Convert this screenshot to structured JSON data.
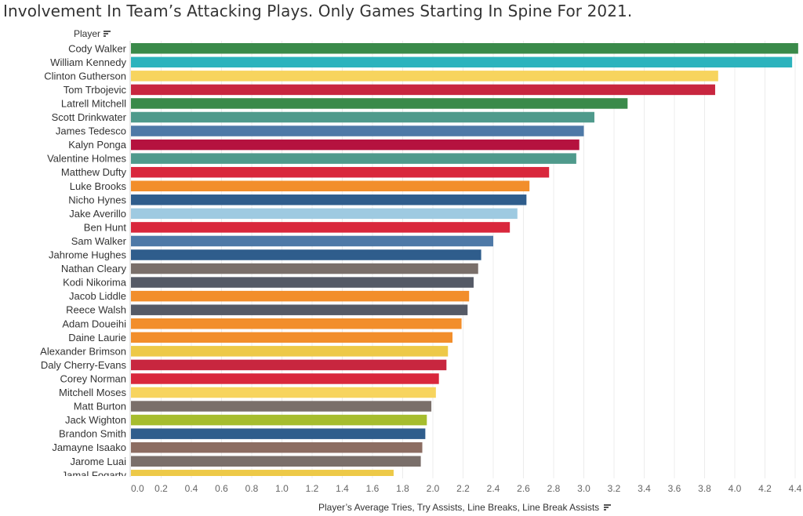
{
  "title": "Involvement In Team’s Attacking Plays. Only Games Starting In Spine For 2021.",
  "header": {
    "player_label": "Player",
    "sort_icon": "sort-icon"
  },
  "chart_data": {
    "type": "bar",
    "orientation": "horizontal",
    "title": "Involvement In Team’s Attacking Plays. Only Games Starting In Spine For 2021.",
    "ylabel": "Player",
    "xlabel": "Player’s Average Tries, Try Assists, Line Breaks, Line Break Assists",
    "xlim": [
      0,
      4.4
    ],
    "xticks": [
      "0.0",
      "0.2",
      "0.4",
      "0.6",
      "0.8",
      "1.0",
      "1.2",
      "1.4",
      "1.6",
      "1.8",
      "2.0",
      "2.2",
      "2.4",
      "2.6",
      "2.8",
      "3.0",
      "3.2",
      "3.4",
      "3.6",
      "3.8",
      "4.0",
      "4.2",
      "4.4"
    ],
    "grid": "vertical",
    "categories": [
      "Cody Walker",
      "William Kennedy",
      "Clinton Gutherson",
      "Tom Trbojevic",
      "Latrell Mitchell",
      "Scott Drinkwater",
      "James Tedesco",
      "Kalyn Ponga",
      "Valentine Holmes",
      "Matthew Dufty",
      "Luke Brooks",
      "Nicho Hynes",
      "Jake Averillo",
      "Ben Hunt",
      "Sam Walker",
      "Jahrome Hughes",
      "Nathan Cleary",
      "Kodi Nikorima",
      "Jacob Liddle",
      "Reece Walsh",
      "Adam Doueihi",
      "Daine Laurie",
      "Alexander Brimson",
      "Daly Cherry-Evans",
      "Corey Norman",
      "Mitchell Moses",
      "Matt Burton",
      "Jack Wighton",
      "Brandon Smith",
      "Jamayne Isaako",
      "Jarome Luai",
      "Jamal Fogarty"
    ],
    "values": [
      4.42,
      4.38,
      3.89,
      3.87,
      3.29,
      3.07,
      3.0,
      2.97,
      2.95,
      2.77,
      2.64,
      2.62,
      2.56,
      2.51,
      2.4,
      2.32,
      2.3,
      2.27,
      2.24,
      2.23,
      2.19,
      2.13,
      2.1,
      2.09,
      2.04,
      2.02,
      1.99,
      1.96,
      1.95,
      1.93,
      1.92,
      1.74
    ],
    "colors": [
      "#3a8a4a",
      "#2cb3bd",
      "#f7d45e",
      "#c8263f",
      "#3a8a4a",
      "#4f9a8c",
      "#4e79a7",
      "#b5123f",
      "#4f9a8c",
      "#d9273c",
      "#f28e2b",
      "#2f5d8c",
      "#9ecae1",
      "#d9273c",
      "#4e79a7",
      "#2f5d8c",
      "#7a6f6a",
      "#555a66",
      "#f28e2b",
      "#555a66",
      "#f28e2b",
      "#f28e2b",
      "#edc948",
      "#c8263f",
      "#d9273c",
      "#f7d45e",
      "#7a6f6a",
      "#a6bd2e",
      "#2f5d8c",
      "#8c6d62",
      "#7a6f6a",
      "#edc948"
    ]
  }
}
